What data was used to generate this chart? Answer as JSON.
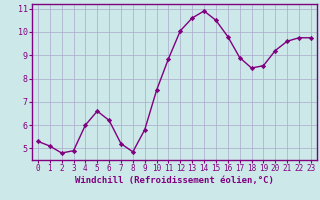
{
  "x": [
    0,
    1,
    2,
    3,
    4,
    5,
    6,
    7,
    8,
    9,
    10,
    11,
    12,
    13,
    14,
    15,
    16,
    17,
    18,
    19,
    20,
    21,
    22,
    23
  ],
  "y": [
    5.3,
    5.1,
    4.8,
    4.9,
    6.0,
    6.6,
    6.2,
    5.2,
    4.85,
    5.8,
    7.5,
    8.85,
    10.05,
    10.6,
    10.9,
    10.5,
    9.8,
    8.9,
    8.45,
    8.55,
    9.2,
    9.6,
    9.75,
    9.75
  ],
  "line_color": "#800080",
  "marker": "D",
  "markersize": 2.2,
  "linewidth": 1.0,
  "bg_color": "#cce8e8",
  "grid_color": "#aaaacc",
  "xlabel": "Windchill (Refroidissement éolien,°C)",
  "xlabel_color": "#800080",
  "xlabel_fontsize": 6.5,
  "xlim": [
    -0.5,
    23.5
  ],
  "ylim": [
    4.5,
    11.2
  ],
  "yticks": [
    5,
    6,
    7,
    8,
    9,
    10,
    11
  ],
  "xticks": [
    0,
    1,
    2,
    3,
    4,
    5,
    6,
    7,
    8,
    9,
    10,
    11,
    12,
    13,
    14,
    15,
    16,
    17,
    18,
    19,
    20,
    21,
    22,
    23
  ],
  "tick_color": "#800080",
  "tick_labelsize": 5.5,
  "ytick_labelsize": 6.0,
  "spine_color": "#800080"
}
